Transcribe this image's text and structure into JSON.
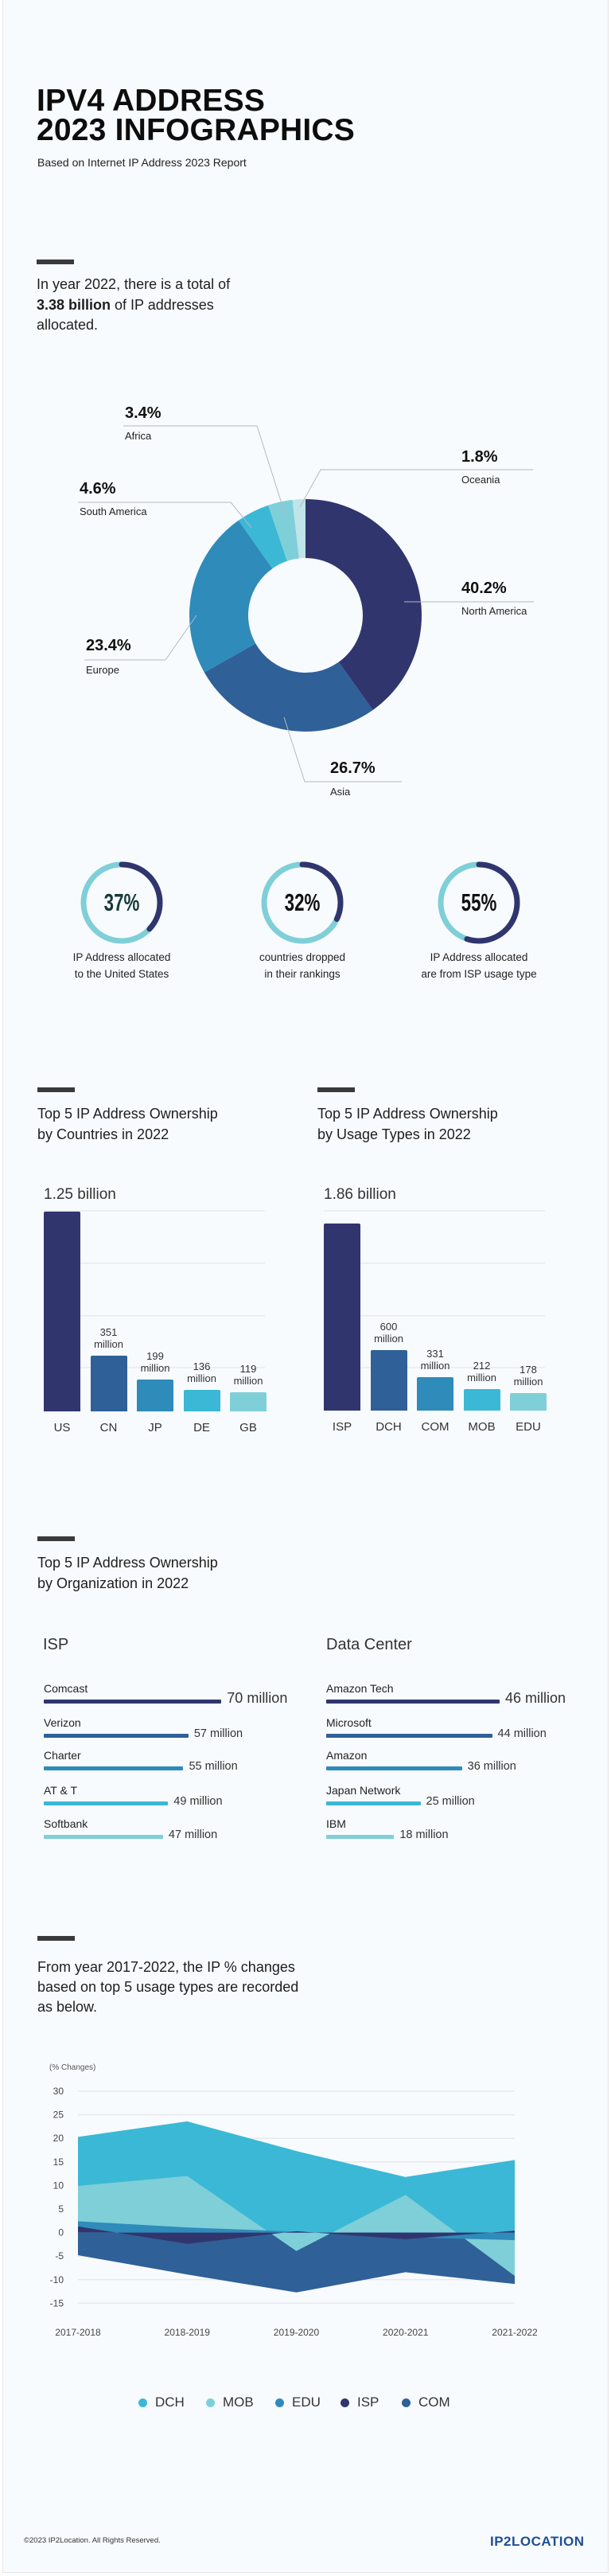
{
  "header": {
    "title_line1": "IPV4 ADDRESS",
    "title_line2": "2023 INFOGRAPHICS",
    "subtitle": "Based on Internet IP Address 2023 Report"
  },
  "intro": {
    "line1": "In year 2022, there is a total of",
    "highlight": "3.38 billion",
    "line2_rest": " of IP addresses",
    "line3": "allocated."
  },
  "colors": {
    "navy": "#31356e",
    "blue": "#2f6098",
    "mid_blue": "#2e8bba",
    "cyan": "#3bb8d6",
    "light_cyan": "#7fcfd8",
    "pale_cyan": "#bfe4ea",
    "logo": "#1f4e96"
  },
  "stats": [
    {
      "value": "37%",
      "fraction": 0.37,
      "label_line1": "IP Address allocated",
      "label_line2": "to the United States"
    },
    {
      "value": "32%",
      "fraction": 0.32,
      "label_line1": "countries dropped",
      "label_line2": "in their rankings"
    },
    {
      "value": "55%",
      "fraction": 0.55,
      "label_line1": "IP Address allocated",
      "label_line2": "are from ISP usage type"
    }
  ],
  "sections": {
    "countries_title_1": "Top 5 IP Address Ownership",
    "countries_title_2": "by Countries in 2022",
    "usage_title_1": "Top 5 IP Address Ownership",
    "usage_title_2": "by Usage Types in 2022",
    "org_title_1": "Top 5 IP Address Ownership",
    "org_title_2": "by Organization in 2022",
    "org_isp_heading": "ISP",
    "org_dc_heading": "Data Center",
    "trend_line1": "From year 2017-2022, the IP % changes",
    "trend_line2": "based on top 5 usage types are recorded",
    "trend_line3": "as below."
  },
  "chart_data": [
    {
      "type": "pie",
      "donut": true,
      "slices": [
        {
          "name": "North America",
          "value": 40.2,
          "label": "40.2%",
          "color": "#31356e"
        },
        {
          "name": "Asia",
          "value": 26.7,
          "label": "26.7%",
          "color": "#2f6098"
        },
        {
          "name": "Europe",
          "value": 23.4,
          "label": "23.4%",
          "color": "#2e8bba"
        },
        {
          "name": "South America",
          "value": 4.6,
          "label": "4.6%",
          "color": "#3bb8d6"
        },
        {
          "name": "Africa",
          "value": 3.4,
          "label": "3.4%",
          "color": "#7fcfd8"
        },
        {
          "name": "Oceania",
          "value": 1.8,
          "label": "1.8%",
          "color": "#bfe4ea"
        }
      ]
    },
    {
      "type": "bar",
      "title": "Top 5 IP Address Ownership by Countries in 2022",
      "categories": [
        "US",
        "CN",
        "JP",
        "DE",
        "GB"
      ],
      "values": [
        1250,
        351,
        199,
        136,
        119
      ],
      "unit": "million",
      "data_labels": [
        "1.25 billion",
        "351 million",
        "199 million",
        "136 million",
        "119 million"
      ],
      "colors": [
        "#31356e",
        "#2f6098",
        "#2e8bba",
        "#3bb8d6",
        "#7fcfd8"
      ],
      "grid": true
    },
    {
      "type": "bar",
      "title": "Top 5 IP Address Ownership by Usage Types in 2022",
      "categories": [
        "ISP",
        "DCH",
        "COM",
        "MOB",
        "EDU"
      ],
      "values": [
        1860,
        600,
        331,
        212,
        178
      ],
      "unit": "million",
      "data_labels": [
        "1.86 billion",
        "600 million",
        "331 million",
        "212 million",
        "178 million"
      ],
      "colors": [
        "#31356e",
        "#2f6098",
        "#2e8bba",
        "#3bb8d6",
        "#7fcfd8"
      ],
      "grid": true
    },
    {
      "type": "bar",
      "orientation": "horizontal",
      "title": "ISP",
      "categories": [
        "Comcast",
        "Verizon",
        "Charter",
        "AT & T",
        "Softbank"
      ],
      "values": [
        70,
        57,
        55,
        49,
        47
      ],
      "data_labels": [
        "70 million",
        "57 million",
        "55 million",
        "49 million",
        "47 million"
      ],
      "colors": [
        "#31356e",
        "#2f6098",
        "#2e8bba",
        "#3bb8d6",
        "#7fcfd8"
      ]
    },
    {
      "type": "bar",
      "orientation": "horizontal",
      "title": "Data Center",
      "categories": [
        "Amazon Tech",
        "Microsoft",
        "Amazon",
        "Japan Network",
        "IBM"
      ],
      "values": [
        46,
        44,
        36,
        25,
        18
      ],
      "data_labels": [
        "46 million",
        "44 million",
        "36 million",
        "25 million",
        "18 million"
      ],
      "colors": [
        "#31356e",
        "#2f6098",
        "#2e8bba",
        "#3bb8d6",
        "#7fcfd8"
      ]
    },
    {
      "type": "area",
      "ylabel": "(% Changes)",
      "x": [
        "2017-2018",
        "2018-2019",
        "2019-2020",
        "2020-2021",
        "2021-2022"
      ],
      "ylim": [
        -15,
        30
      ],
      "yticks": [
        30,
        25,
        20,
        15,
        10,
        5,
        0,
        -5,
        -10,
        -15
      ],
      "grid": true,
      "legend": "bottom",
      "series": [
        {
          "name": "DCH",
          "values": [
            20.3,
            23.6,
            17.3,
            11.8,
            15.4
          ],
          "color": "#3bb8d6"
        },
        {
          "name": "MOB",
          "values": [
            9.9,
            12.0,
            -3.9,
            8.0,
            -9.2
          ],
          "color": "#7fcfd8"
        },
        {
          "name": "EDU",
          "values": [
            2.4,
            1.1,
            0.2,
            -1.0,
            -1.6
          ],
          "color": "#2e8bba"
        },
        {
          "name": "ISP",
          "values": [
            1.3,
            -2.4,
            0.3,
            -1.4,
            0.4
          ],
          "color": "#31356e"
        },
        {
          "name": "COM",
          "values": [
            -4.8,
            -8.9,
            -12.7,
            -8.4,
            -10.9
          ],
          "color": "#2f6098"
        }
      ]
    }
  ],
  "footer": {
    "copyright": "©2023 IP2Location. All Rights Reserved.",
    "logo": "IP2LOCATION"
  }
}
